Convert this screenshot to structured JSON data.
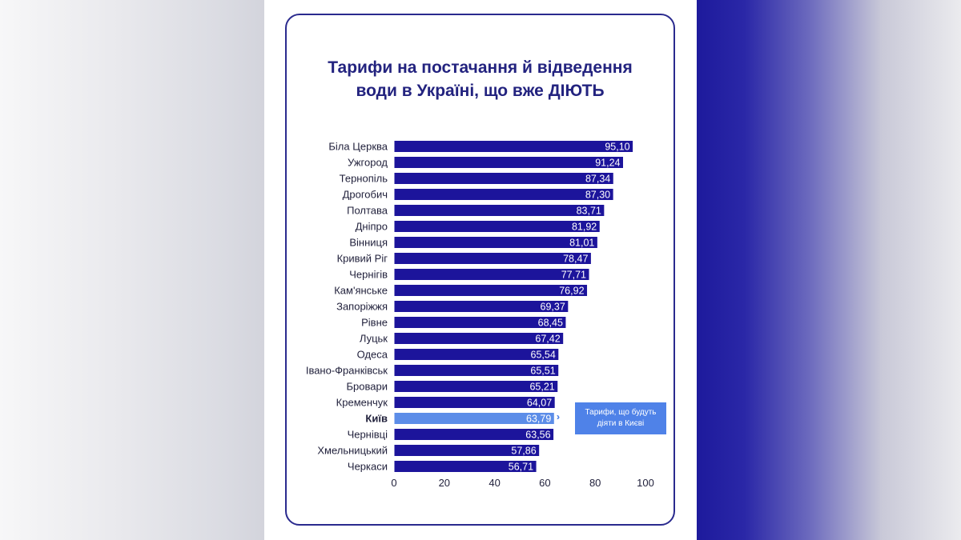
{
  "chart_data": {
    "type": "bar",
    "orientation": "horizontal",
    "title": [
      "Тарифи на постачання й відведення",
      "води в Україні, що вже ДІЮТЬ"
    ],
    "categories": [
      "Біла Церква",
      "Ужгород",
      "Тернопіль",
      "Дрогобич",
      "Полтава",
      "Дніпро",
      "Вінниця",
      "Кривий Ріг",
      "Чернігів",
      "Кам'янське",
      "Запоріжжя",
      "Рівне",
      "Луцьк",
      "Одеса",
      "Івано-Франківськ",
      "Бровари",
      "Кременчук",
      "Київ",
      "Чернівці",
      "Хмельницький",
      "Черкаси"
    ],
    "values": [
      95.1,
      91.24,
      87.34,
      87.3,
      83.71,
      81.92,
      81.01,
      78.47,
      77.71,
      76.92,
      69.37,
      68.45,
      67.42,
      65.54,
      65.51,
      65.21,
      64.07,
      63.79,
      63.56,
      57.86,
      56.71
    ],
    "value_labels": [
      "95,10",
      "91,24",
      "87,34",
      "87,30",
      "83,71",
      "81,92",
      "81,01",
      "78,47",
      "77,71",
      "76,92",
      "69,37",
      "68,45",
      "67,42",
      "65,54",
      "65,51",
      "65,21",
      "64,07",
      "63,79",
      "63,56",
      "57,86",
      "56,71"
    ],
    "highlight_category": "Київ",
    "xticks": [
      "0",
      "20",
      "40",
      "60",
      "80",
      "100"
    ],
    "xlim": [
      0,
      100
    ],
    "grid": false,
    "bar_color": "#1c149b",
    "highlight_color": "#5c8de8",
    "annotation": "Тарифи, що будуть діяти в Києві"
  }
}
